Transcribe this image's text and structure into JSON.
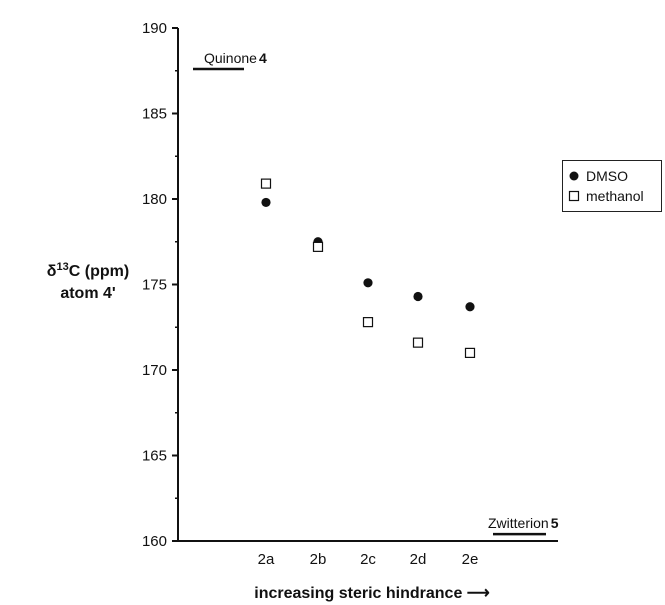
{
  "chart_data": {
    "type": "scatter",
    "categories": [
      "2a",
      "2b",
      "2c",
      "2d",
      "2e"
    ],
    "series": [
      {
        "name": "DMSO",
        "marker": "filled-circle",
        "color": "#111111",
        "values": [
          179.8,
          177.5,
          175.1,
          174.3,
          173.7
        ]
      },
      {
        "name": "methanol",
        "marker": "open-square",
        "color": "#111111",
        "values": [
          180.9,
          177.2,
          172.8,
          171.6,
          171.0
        ]
      }
    ],
    "ylim": [
      160,
      190
    ],
    "yticks": [
      160,
      165,
      170,
      175,
      180,
      185,
      190
    ],
    "ylabel_line1": "δ",
    "ylabel_sup": "13",
    "ylabel_rest": "C (ppm)",
    "ylabel_line2": "atom 4'",
    "xlabel": "increasing steric hindrance ⟶",
    "annotations": {
      "top_name": "Quinone",
      "top_num": "4",
      "top_value": 187.6,
      "bottom_name": "Zwitterion",
      "bottom_num": "5",
      "bottom_value": 160.4
    },
    "legend_position": "right"
  }
}
